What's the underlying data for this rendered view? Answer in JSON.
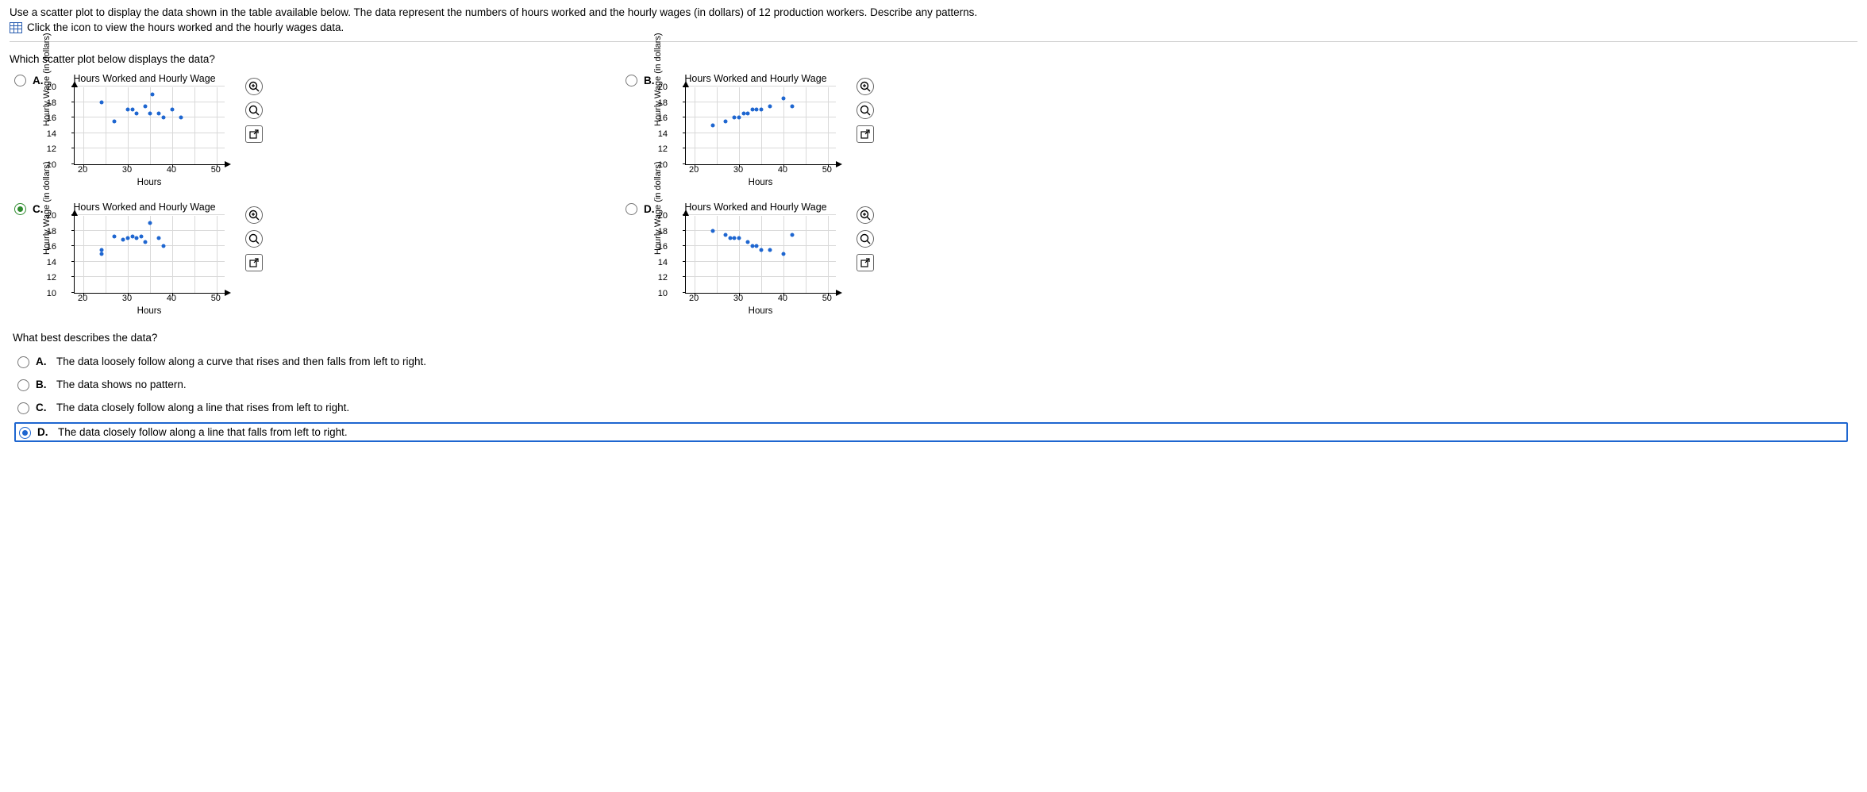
{
  "prompt": "Use a scatter plot to display the data shown in the table available below. The data represent the numbers of hours worked and the hourly wages (in dollars) of 12 production workers. Describe any patterns.",
  "icon_link_text": "Click the icon to view the hours worked and the hourly wages data.",
  "q1_text": "Which scatter plot below displays the data?",
  "chart_common": {
    "title": "Hours Worked and Hourly Wage",
    "x_label": "Hours",
    "y_label": "Hourly Wage (in dollars)",
    "x_min": 18,
    "x_max": 52,
    "y_min": 10,
    "y_max": 20,
    "x_ticks": [
      20,
      30,
      40,
      50
    ],
    "y_ticks": [
      10,
      12,
      14,
      16,
      18,
      20
    ],
    "x_grid": [
      20,
      25,
      30,
      35,
      40,
      45,
      50
    ],
    "y_grid": [
      12,
      14,
      16,
      18,
      20
    ],
    "point_color": "#1e66d0",
    "grid_color": "#d9d9d9",
    "background_color": "#ffffff"
  },
  "options_q1": {
    "A": {
      "label": "A.",
      "selected": false,
      "points": [
        [
          24,
          18
        ],
        [
          27,
          15.5
        ],
        [
          30,
          17
        ],
        [
          31,
          17
        ],
        [
          32,
          16.5
        ],
        [
          34,
          17.5
        ],
        [
          35,
          16.5
        ],
        [
          35.5,
          19
        ],
        [
          37,
          16.5
        ],
        [
          38,
          16
        ],
        [
          40,
          17
        ],
        [
          42,
          16
        ]
      ]
    },
    "B": {
      "label": "B.",
      "selected": false,
      "points": [
        [
          24,
          15
        ],
        [
          27,
          15.5
        ],
        [
          29,
          16
        ],
        [
          30,
          16
        ],
        [
          31,
          16.5
        ],
        [
          32,
          16.5
        ],
        [
          33,
          17
        ],
        [
          34,
          17
        ],
        [
          35,
          17
        ],
        [
          37,
          17.5
        ],
        [
          40,
          18.5
        ],
        [
          42,
          17.5
        ]
      ]
    },
    "C": {
      "label": "C.",
      "selected": true,
      "selected_variant": "green",
      "points": [
        [
          24,
          15
        ],
        [
          24,
          15.5
        ],
        [
          27,
          17.2
        ],
        [
          29,
          16.8
        ],
        [
          30,
          17
        ],
        [
          31,
          17.2
        ],
        [
          32,
          17
        ],
        [
          33,
          17.2
        ],
        [
          34,
          16.5
        ],
        [
          35,
          19
        ],
        [
          37,
          17
        ],
        [
          38,
          16
        ]
      ]
    },
    "D": {
      "label": "D.",
      "selected": false,
      "points": [
        [
          24,
          18
        ],
        [
          27,
          17.5
        ],
        [
          28,
          17
        ],
        [
          29,
          17
        ],
        [
          30,
          17
        ],
        [
          32,
          16.5
        ],
        [
          33,
          16
        ],
        [
          34,
          16
        ],
        [
          35,
          15.5
        ],
        [
          37,
          15.5
        ],
        [
          40,
          15
        ],
        [
          42,
          17.5
        ]
      ]
    }
  },
  "q2_text": "What best describes the data?",
  "options_q2": {
    "A": {
      "label": "A.",
      "text": "The data loosely follow along a curve that rises and then falls from left to right.",
      "selected": false
    },
    "B": {
      "label": "B.",
      "text": "The data shows no pattern.",
      "selected": false
    },
    "C": {
      "label": "C.",
      "text": "The data closely follow along a line that rises from left to right.",
      "selected": false
    },
    "D": {
      "label": "D.",
      "text": "The data closely follow along a line that falls from left to right.",
      "selected": true
    }
  },
  "buttons": {
    "zoom_in": "⊕",
    "zoom_reset": "⊖",
    "open": "↗"
  }
}
